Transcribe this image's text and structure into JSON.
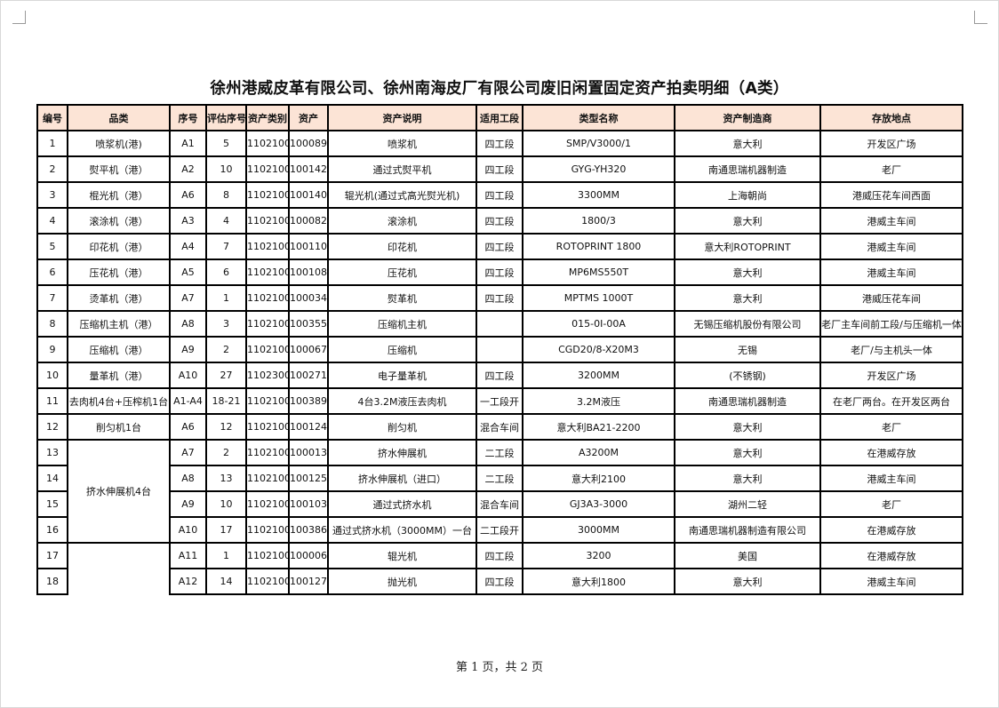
{
  "title": "徐州港威皮革有限公司、徐州南海皮厂有限公司废旧闲置固定资产拍卖明细（A类）",
  "columns": [
    "编号",
    "品类",
    "序号",
    "评估序号",
    "资产类别",
    "资产",
    "资产说明",
    "适用工段",
    "类型名称",
    "资产制造商",
    "存放地点"
  ],
  "rows": [
    [
      "1",
      "喷浆机(港)",
      "A1",
      "5",
      "1102100",
      "100089",
      "喷浆机",
      "四工段",
      "SMP/V3000/1",
      "意大利",
      "开发区广场"
    ],
    [
      "2",
      "熨平机（港）",
      "A2",
      "10",
      "1102100",
      "100142",
      "通过式熨平机",
      "四工段",
      "GYG-YH320",
      "南通思瑞机器制造",
      "老厂"
    ],
    [
      "3",
      "棍光机（港）",
      "A6",
      "8",
      "1102100",
      "100140",
      "辊光机(通过式高光熨光机)",
      "四工段",
      "3300MM",
      "上海朝尚",
      "港威压花车间西面"
    ],
    [
      "4",
      "滚涂机（港）",
      "A3",
      "4",
      "1102100",
      "100082",
      "滚涂机",
      "四工段",
      "1800/3",
      "意大利",
      "港威主车间"
    ],
    [
      "5",
      "印花机（港）",
      "A4",
      "7",
      "1102100",
      "100110",
      "印花机",
      "四工段",
      "ROTOPRINT 1800",
      "意大利ROTOPRINT",
      "港威主车间"
    ],
    [
      "6",
      "压花机（港）",
      "A5",
      "6",
      "1102100",
      "100108",
      "压花机",
      "四工段",
      "MP6MS550T",
      "意大利",
      "港威主车间"
    ],
    [
      "7",
      "烫革机（港）",
      "A7",
      "1",
      "1102100",
      "100034",
      "熨革机",
      "四工段",
      "MPTMS 1000T",
      "意大利",
      "港威压花车间"
    ],
    [
      "8",
      "压缩机主机（港）",
      "A8",
      "3",
      "1102100",
      "100355",
      "压缩机主机",
      "",
      "015-0I-00A",
      "无锡压缩机股份有限公司",
      "老厂主车间前工段/与压缩机一体"
    ],
    [
      "9",
      "压缩机（港）",
      "A9",
      "2",
      "1102100",
      "100067",
      "压缩机",
      "",
      "CGD20/8-X20M3",
      "无锡",
      "老厂/与主机头一体"
    ],
    [
      "10",
      "量革机（港）",
      "A10",
      "27",
      "1102300",
      "100271",
      "电子量革机",
      "四工段",
      "3200MM",
      "(不锈钢)",
      "开发区广场"
    ],
    [
      "11",
      "去肉机4台+压榨机1台",
      "A1-A4",
      "18-21",
      "1102100",
      "100389",
      "4台3.2M液压去肉机",
      "一工段开",
      "3.2M液压",
      "南通思瑞机器制造",
      "在老厂两台。在开发区两台"
    ],
    [
      "12",
      "削匀机1台",
      "A6",
      "12",
      "1102100",
      "100124",
      "削匀机",
      "混合车间",
      "意大利BA21-2200",
      "意大利",
      "老厂"
    ],
    [
      "13",
      "挤水伸展机4台",
      "A7",
      "2",
      "1102100",
      "100013",
      "挤水伸展机",
      "二工段",
      "A3200M",
      "意大利",
      "在港威存放"
    ],
    [
      "14",
      "",
      "A8",
      "13",
      "1102100",
      "100125",
      "挤水伸展机（进口）",
      "二工段",
      "意大利2100",
      "意大利",
      "港威主车间"
    ],
    [
      "15",
      "",
      "A9",
      "10",
      "1102100",
      "100103",
      "通过式挤水机",
      "混合车间",
      "GJ3A3-3000",
      "湖州二轻",
      "老厂"
    ],
    [
      "16",
      "",
      "A10",
      "17",
      "1102100",
      "100386",
      "通过式挤水机（3000MM）一台",
      "二工段开",
      "3000MM",
      "南通思瑞机器制造有限公司",
      "在港威存放"
    ],
    [
      "17",
      "",
      "A11",
      "1",
      "1102100",
      "100006",
      "辊光机",
      "四工段",
      "3200",
      "美国",
      "在港威存放"
    ],
    [
      "18",
      "",
      "A12",
      "14",
      "1102100",
      "100127",
      "抛光机",
      "四工段",
      "意大利1800",
      "意大利",
      "港威主车间"
    ]
  ],
  "footer": "第 1 页，共 2 页",
  "colors": {
    "header_bg": "#fce4d6",
    "border": "#000000"
  }
}
